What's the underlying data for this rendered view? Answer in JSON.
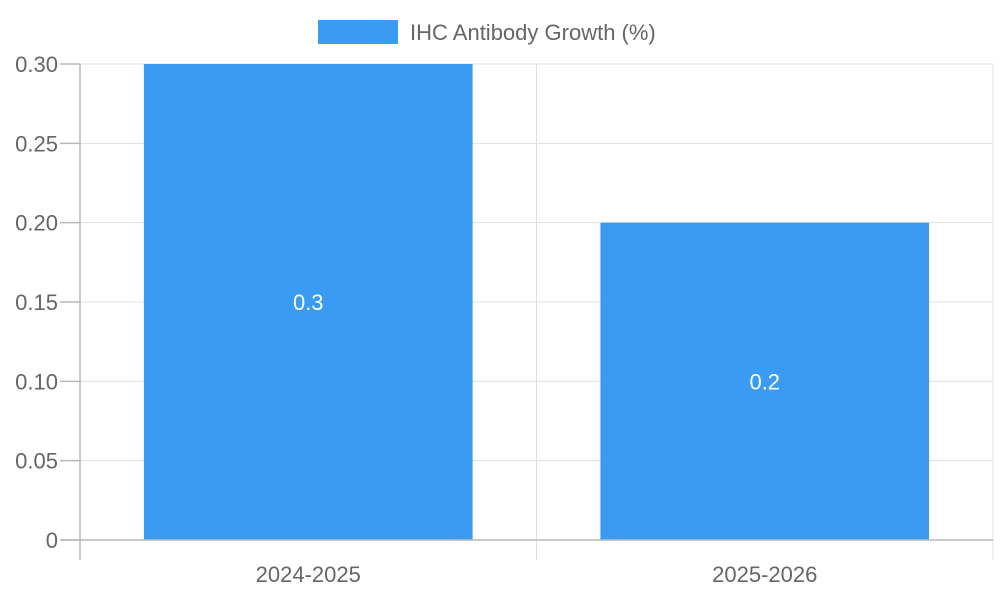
{
  "chart_data": {
    "type": "bar",
    "title": "",
    "xlabel": "",
    "ylabel": "",
    "categories": [
      "2024-2025",
      "2025-2026"
    ],
    "series": [
      {
        "name": "IHC Antibody Growth (%)",
        "values": [
          0.3,
          0.2
        ],
        "color": "#399cf2"
      }
    ],
    "data_labels": [
      "0.3",
      "0.2"
    ],
    "ylim": [
      0,
      0.3
    ],
    "yticks": [
      0,
      0.05,
      0.1,
      0.15,
      0.2,
      0.25,
      0.3
    ],
    "ytick_labels": [
      "0",
      "0.05",
      "0.10",
      "0.15",
      "0.20",
      "0.25",
      "0.30"
    ],
    "grid": true,
    "legend_position": "top-center"
  },
  "colors": {
    "bar": "#399cf2",
    "grid": "#e0e0e0",
    "axis": "#b8b8b8",
    "text": "#666666"
  }
}
